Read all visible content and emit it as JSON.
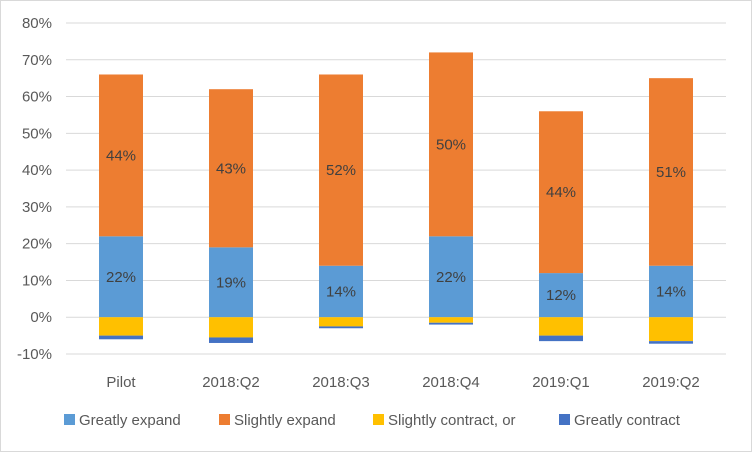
{
  "chart_data": {
    "type": "bar",
    "stacked": true,
    "categories": [
      "Pilot",
      "2018:Q2",
      "2018:Q3",
      "2018:Q4",
      "2019:Q1",
      "2019:Q2"
    ],
    "series": [
      {
        "name": "Greatly expand",
        "color": "#5B9BD5",
        "values": [
          22,
          19,
          14,
          22,
          12,
          14
        ],
        "labels": [
          "22%",
          "19%",
          "14%",
          "22%",
          "12%",
          "14%"
        ]
      },
      {
        "name": "Slightly expand",
        "color": "#ED7D31",
        "values": [
          44,
          43,
          52,
          50,
          44,
          51
        ],
        "labels": [
          "44%",
          "43%",
          "52%",
          "50%",
          "44%",
          "51%"
        ]
      },
      {
        "name": "Slightly contract, or",
        "color": "#FFC000",
        "values": [
          -5,
          -5.5,
          -2.5,
          -1.5,
          -5,
          -6.5
        ]
      },
      {
        "name": "Greatly contract",
        "color": "#4472C4",
        "values": [
          -1,
          -1.5,
          -0.5,
          -0.5,
          -1.5,
          -0.7
        ]
      }
    ],
    "yticks": [
      "80%",
      "70%",
      "60%",
      "50%",
      "40%",
      "30%",
      "20%",
      "10%",
      "0%",
      "-10%"
    ],
    "ylim": [
      -10,
      80
    ],
    "grid": true,
    "legend_position": "bottom"
  }
}
